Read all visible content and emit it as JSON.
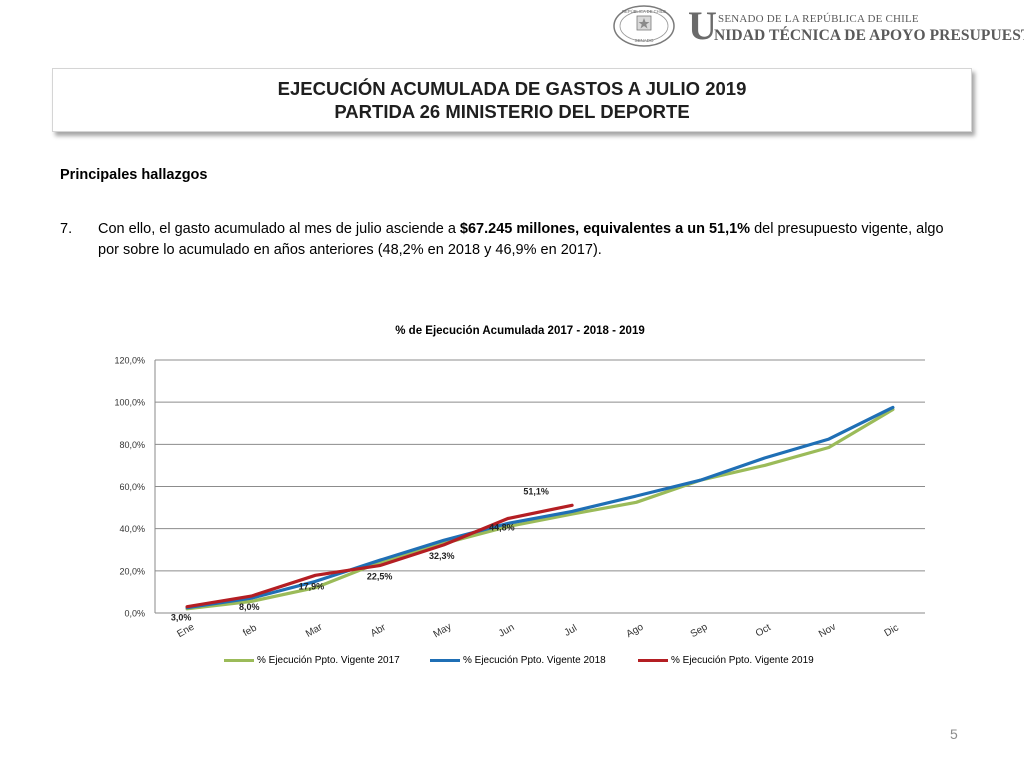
{
  "header": {
    "seal_text": "REPÚBLICA DE CHILE",
    "seal_bottom": "SENADO",
    "brand_initial": "U",
    "brand_top": "SENADO DE LA REPÚBLICA DE CHILE",
    "brand_bottom": "NIDAD TÉCNICA DE APOYO PRESUPUESTARIO"
  },
  "title": {
    "line1": "EJECUCIÓN ACUMULADA DE GASTOS A JULIO 2019",
    "line2": "PARTIDA 26 MINISTERIO DEL DEPORTE"
  },
  "section_heading": "Principales hallazgos",
  "finding": {
    "number": "7.",
    "text_before": "Con ello, el gasto acumulado al mes de julio asciende a ",
    "text_bold": "$67.245 millones, equivalentes a un 51,1%",
    "text_after": " del presupuesto vigente, algo por sobre lo acumulado en años anteriores (48,2% en 2018 y 46,9% en 2017)."
  },
  "chart_data": {
    "type": "line",
    "title": "% de Ejecución Acumulada 2017 - 2018 - 2019",
    "categories": [
      "Ene",
      "feb",
      "Mar",
      "Abr",
      "May",
      "Jun",
      "Jul",
      "Ago",
      "Sep",
      "Oct",
      "Nov",
      "Dic"
    ],
    "ylim": [
      0,
      120
    ],
    "yticks": [
      "0,0%",
      "20,0%",
      "40,0%",
      "60,0%",
      "80,0%",
      "100,0%",
      "120,0%"
    ],
    "grid": true,
    "legend_position": "bottom",
    "series": [
      {
        "name": "% Ejecución Ppto. Vigente 2017",
        "color": "#9BBB59",
        "values": [
          2.0,
          5.5,
          12.0,
          24.0,
          33.0,
          41.0,
          46.9,
          52.5,
          63.0,
          70.0,
          78.5,
          96.5
        ]
      },
      {
        "name": "% Ejecución Ppto. Vigente 2018",
        "color": "#1F6FB5",
        "values": [
          2.5,
          7.0,
          15.0,
          25.0,
          34.5,
          42.5,
          48.2,
          55.5,
          63.0,
          73.5,
          82.5,
          97.5
        ]
      },
      {
        "name": "% Ejecución Ppto. Vigente 2019",
        "color": "#B41E23",
        "values": [
          3.0,
          8.0,
          17.9,
          22.5,
          32.3,
          44.8,
          51.1,
          null,
          null,
          null,
          null,
          null
        ]
      }
    ],
    "data_labels": [
      "3,0%",
      "8,0%",
      "17,9%",
      "22,5%",
      "32,3%",
      "44,8%",
      "51,1%"
    ]
  },
  "page_number": "5"
}
